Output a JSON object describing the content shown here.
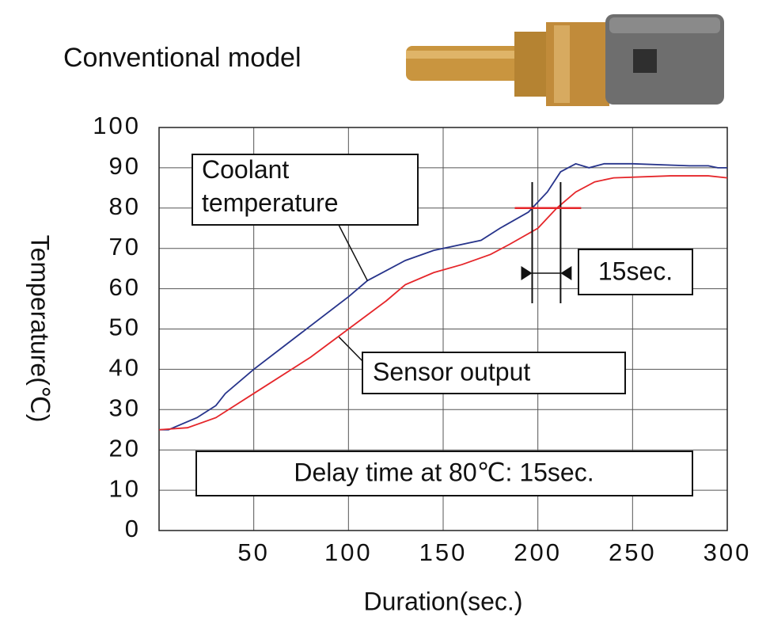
{
  "chart_data": {
    "type": "line",
    "title": "Conventional model",
    "x_label": "Duration(sec.)",
    "y_label": "Temperature(℃)",
    "xlim": [
      0,
      300
    ],
    "xticks": [
      50,
      100,
      150,
      200,
      250,
      300
    ],
    "ylim": [
      0,
      100
    ],
    "yticks": [
      0,
      10,
      20,
      30,
      40,
      50,
      60,
      70,
      80,
      90,
      100
    ],
    "grid": true,
    "series": [
      {
        "name": "Coolant temperature",
        "color": "#27348b",
        "x": [
          0,
          5,
          20,
          30,
          35,
          50,
          100,
          110,
          130,
          145,
          170,
          180,
          195,
          205,
          212,
          220,
          227,
          235,
          250,
          280,
          290,
          295,
          300
        ],
        "values": [
          25,
          25,
          28,
          31,
          34,
          40,
          58,
          62,
          67,
          69.5,
          72,
          75,
          79,
          84,
          89,
          91,
          90,
          91,
          91,
          90.5,
          90.5,
          90,
          90
        ]
      },
      {
        "name": "Sensor output",
        "color": "#e5262a",
        "x": [
          0,
          15,
          30,
          50,
          80,
          100,
          120,
          130,
          145,
          160,
          175,
          185,
          200,
          210,
          220,
          230,
          240,
          270,
          290,
          300
        ],
        "values": [
          25,
          25.5,
          28,
          34,
          43,
          50,
          57,
          61,
          64,
          66,
          68.5,
          71,
          75,
          80,
          84,
          86.5,
          87.5,
          88,
          88,
          87.5
        ]
      }
    ],
    "reference_lines": {
      "x": [
        197,
        212
      ],
      "y": 80
    },
    "annotations": {
      "delay_label": "15sec.",
      "summary": "Delay time at 80℃: 15sec."
    }
  }
}
